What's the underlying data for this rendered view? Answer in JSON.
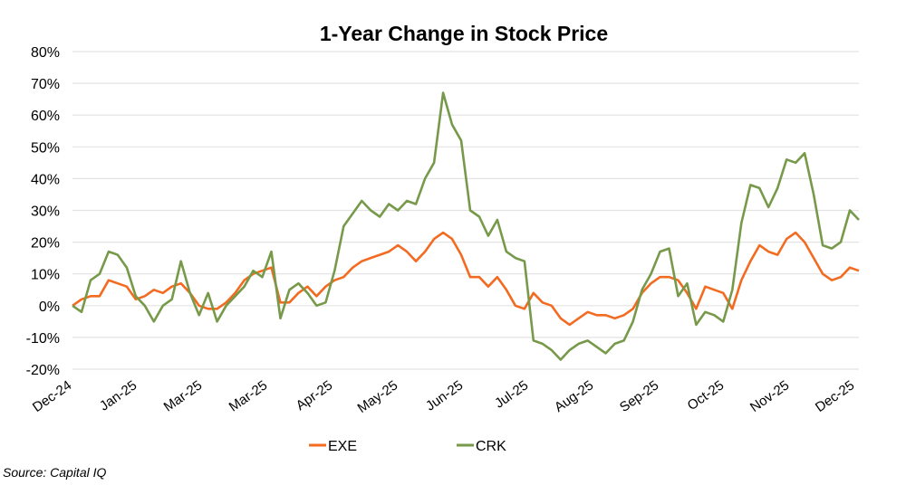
{
  "chart_data": {
    "type": "line",
    "title": "1-Year Change in Stock Price",
    "xlabel": "",
    "ylabel": "",
    "ylim": [
      -20,
      80
    ],
    "y_ticks": [
      "80%",
      "70%",
      "60%",
      "50%",
      "40%",
      "30%",
      "20%",
      "10%",
      "0%",
      "-10%",
      "-20%"
    ],
    "y_tick_values": [
      80,
      70,
      60,
      50,
      40,
      30,
      20,
      10,
      0,
      -10,
      -20
    ],
    "x_ticks": [
      "Dec-24",
      "Jan-25",
      "Mar-25",
      "Mar-25",
      "Apr-25",
      "May-25",
      "Jun-25",
      "Jul-25",
      "Aug-25",
      "Sep-25",
      "Oct-25",
      "Nov-25",
      "Dec-25"
    ],
    "grid": true,
    "legend": "bottom",
    "series": [
      {
        "name": "EXE",
        "color": "#F26B21",
        "values": [
          0,
          2,
          3,
          3,
          8,
          7,
          6,
          2,
          3,
          5,
          4,
          6,
          7,
          4,
          0,
          -1,
          -1,
          1,
          4,
          8,
          10,
          11,
          12,
          1,
          1,
          4,
          6,
          3,
          6,
          8,
          9,
          12,
          14,
          15,
          16,
          17,
          19,
          17,
          14,
          17,
          21,
          23,
          21,
          16,
          9,
          9,
          6,
          9,
          5,
          0,
          -1,
          4,
          1,
          0,
          -4,
          -6,
          -4,
          -2,
          -3,
          -3,
          -4,
          -3,
          -1,
          4,
          7,
          9,
          9,
          8,
          4,
          -1,
          6,
          5,
          4,
          -1,
          8,
          14,
          19,
          17,
          16,
          21,
          23,
          20,
          15,
          10,
          8,
          9,
          12,
          11
        ]
      },
      {
        "name": "CRK",
        "color": "#77994A",
        "values": [
          0,
          -2,
          8,
          10,
          17,
          16,
          12,
          3,
          0,
          -5,
          0,
          2,
          14,
          4,
          -3,
          4,
          -5,
          0,
          3,
          6,
          11,
          9,
          17,
          -4,
          5,
          7,
          4,
          0,
          1,
          11,
          25,
          29,
          33,
          30,
          28,
          32,
          30,
          33,
          32,
          40,
          45,
          67,
          57,
          52,
          30,
          28,
          22,
          27,
          17,
          15,
          14,
          -11,
          -12,
          -14,
          -17,
          -14,
          -12,
          -11,
          -13,
          -15,
          -12,
          -11,
          -5,
          5,
          10,
          17,
          18,
          3,
          7,
          -6,
          -2,
          -3,
          -5,
          5,
          26,
          38,
          37,
          31,
          37,
          46,
          45,
          48,
          35,
          19,
          18,
          20,
          30,
          27
        ]
      }
    ],
    "source": "Source: Capital IQ"
  }
}
